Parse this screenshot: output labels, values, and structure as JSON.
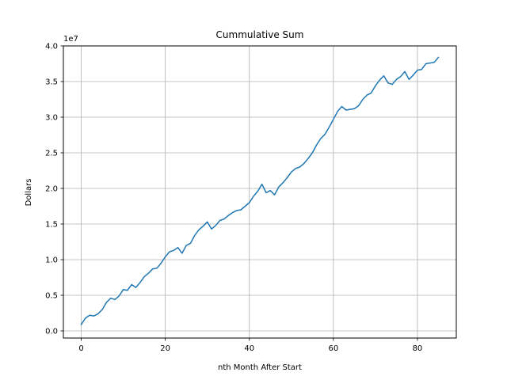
{
  "chart_data": {
    "type": "line",
    "title": "Cummulative Sum",
    "xlabel": "nth Month After Start",
    "ylabel": "Dollars",
    "y_offset_label": "1e7",
    "xlim": [
      -4.25,
      89.25
    ],
    "ylim": [
      -0.1,
      4.0
    ],
    "x_ticks": [
      0,
      20,
      40,
      60,
      80
    ],
    "x_tick_labels": [
      "0",
      "20",
      "40",
      "60",
      "80"
    ],
    "y_ticks": [
      0,
      0.5,
      1.0,
      1.5,
      2.0,
      2.5,
      3.0,
      3.5,
      4.0
    ],
    "y_tick_labels": [
      "0.0",
      "0.5",
      "1.0",
      "1.5",
      "2.0",
      "2.5",
      "3.0",
      "3.5",
      "4.0"
    ],
    "grid": true,
    "line_color": "#1f77b4",
    "series": [
      {
        "x": [
          0,
          1,
          2,
          3,
          4,
          5,
          6,
          7,
          8,
          9,
          10,
          11,
          12,
          13,
          14,
          15,
          16,
          17,
          18,
          19,
          20,
          21,
          22,
          23,
          24,
          25,
          26,
          27,
          28,
          29,
          30,
          31,
          32,
          33,
          34,
          35,
          36,
          37,
          38,
          39,
          40,
          41,
          42,
          43,
          44,
          45,
          46,
          47,
          48,
          49,
          50,
          51,
          52,
          53,
          54,
          55,
          56,
          57,
          58,
          59,
          60,
          61,
          62,
          63,
          64,
          65,
          66,
          67,
          68,
          69,
          70,
          71,
          72,
          73,
          74,
          75,
          76,
          77,
          78,
          79,
          80,
          81,
          82,
          83,
          84,
          85
        ],
        "values": [
          0.09,
          0.18,
          0.22,
          0.21,
          0.24,
          0.3,
          0.4,
          0.46,
          0.44,
          0.49,
          0.58,
          0.57,
          0.65,
          0.61,
          0.68,
          0.76,
          0.81,
          0.87,
          0.88,
          0.95,
          1.04,
          1.11,
          1.13,
          1.17,
          1.09,
          1.2,
          1.23,
          1.34,
          1.42,
          1.47,
          1.53,
          1.43,
          1.48,
          1.55,
          1.57,
          1.62,
          1.66,
          1.69,
          1.7,
          1.75,
          1.8,
          1.89,
          1.96,
          2.06,
          1.94,
          1.97,
          1.91,
          2.02,
          2.08,
          2.15,
          2.23,
          2.28,
          2.3,
          2.35,
          2.42,
          2.5,
          2.61,
          2.7,
          2.76,
          2.86,
          2.97,
          3.08,
          3.15,
          3.1,
          3.11,
          3.12,
          3.16,
          3.25,
          3.31,
          3.34,
          3.44,
          3.52,
          3.58,
          3.48,
          3.46,
          3.53,
          3.57,
          3.64,
          3.53,
          3.59,
          3.66,
          3.67,
          3.75,
          3.76,
          3.77,
          3.84
        ]
      }
    ]
  }
}
